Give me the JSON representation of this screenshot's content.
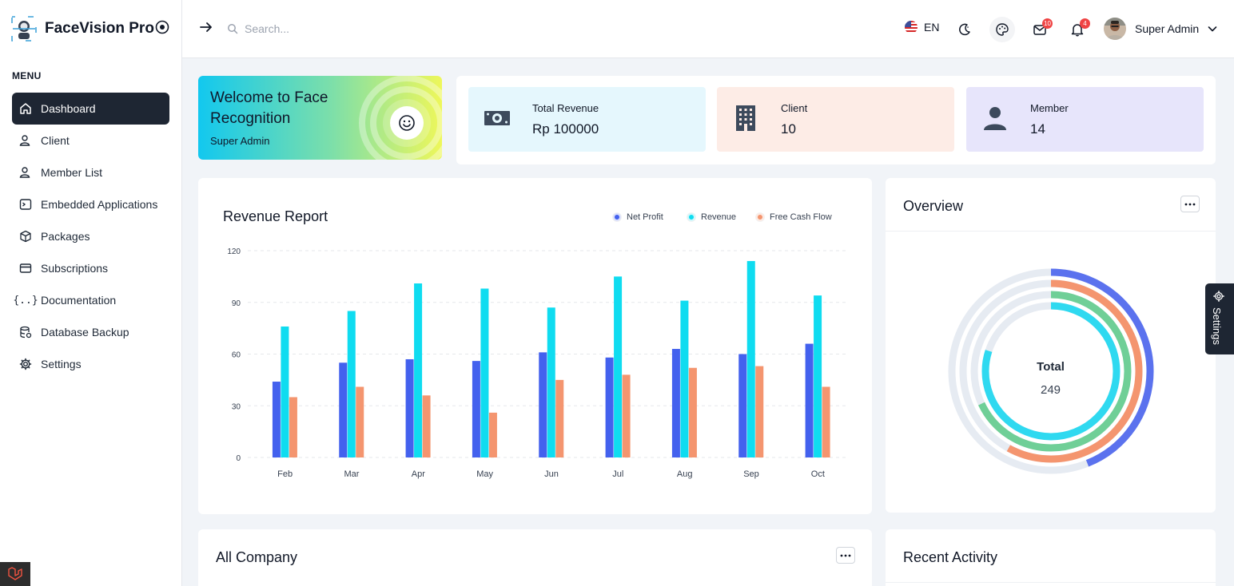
{
  "brand": {
    "name": "FaceVision Pro"
  },
  "sidebar": {
    "menu_title": "MENU",
    "items": [
      {
        "label": "Dashboard",
        "icon": "home-icon",
        "active": true
      },
      {
        "label": "Client",
        "icon": "users-icon"
      },
      {
        "label": "Member List",
        "icon": "users-icon"
      },
      {
        "label": "Embedded Applications",
        "icon": "terminal-icon"
      },
      {
        "label": "Packages",
        "icon": "package-icon"
      },
      {
        "label": "Subscriptions",
        "icon": "credit-card-icon"
      },
      {
        "label": "Documentation",
        "icon": "braces-icon"
      },
      {
        "label": "Database Backup",
        "icon": "database-icon"
      },
      {
        "label": "Settings",
        "icon": "gear-icon"
      }
    ]
  },
  "header": {
    "search_placeholder": "Search...",
    "language": "EN",
    "mail_count": "10",
    "notification_count": "4",
    "user_name": "Super Admin"
  },
  "welcome": {
    "title": "Welcome to Face Recognition",
    "subtitle": "Super Admin"
  },
  "stats": [
    {
      "label": "Total Revenue",
      "value": "Rp 100000",
      "icon": "money-icon",
      "bg": "#e5f7fd"
    },
    {
      "label": "Client",
      "value": "10",
      "icon": "building-icon",
      "bg": "#fdece6"
    },
    {
      "label": "Member",
      "value": "14",
      "icon": "person-icon",
      "bg": "#e7e5fb"
    }
  ],
  "revenue_report": {
    "title": "Revenue Report"
  },
  "chart_data": {
    "type": "bar",
    "title": "Revenue Report",
    "categories": [
      "Feb",
      "Mar",
      "Apr",
      "May",
      "Jun",
      "Jul",
      "Aug",
      "Sep",
      "Oct"
    ],
    "series": [
      {
        "name": "Net Profit",
        "color": "#4361ee",
        "values": [
          44,
          55,
          57,
          56,
          61,
          58,
          63,
          60,
          66
        ]
      },
      {
        "name": "Revenue",
        "color": "#0fdcf0",
        "values": [
          76,
          85,
          101,
          98,
          87,
          105,
          91,
          114,
          94
        ]
      },
      {
        "name": "Free Cash Flow",
        "color": "#f4956f",
        "values": [
          35,
          41,
          36,
          26,
          45,
          48,
          52,
          53,
          41
        ]
      }
    ],
    "yticks": [
      "0",
      "30",
      "60",
      "90",
      "120"
    ],
    "ylim": [
      0,
      120
    ],
    "grid": true,
    "legend_position": "top-right"
  },
  "overview": {
    "title": "Overview",
    "total_label": "Total",
    "total_value": "249",
    "rings": [
      {
        "color": "#5b72ee",
        "fraction": 0.44
      },
      {
        "color": "#f4956f",
        "fraction": 0.58
      },
      {
        "color": "#6fcf97",
        "fraction": 0.68
      },
      {
        "color": "#2fd9f0",
        "fraction": 0.8
      }
    ],
    "track_color": "#e6ebf2"
  },
  "company": {
    "title": "All Company"
  },
  "activity": {
    "title": "Recent Activity"
  },
  "settings_tab": {
    "label": "Settings"
  }
}
